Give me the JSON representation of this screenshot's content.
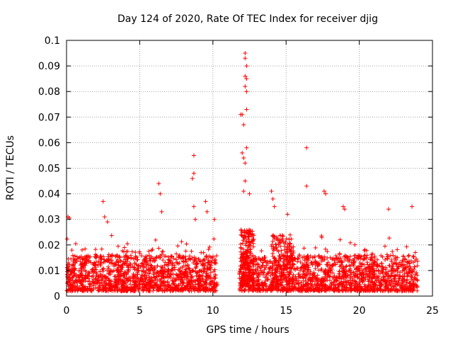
{
  "chart_data": {
    "type": "scatter",
    "title": "Day 124 of 2020, Rate Of TEC Index for receiver djig",
    "xlabel": "GPS time / hours",
    "ylabel": "ROTI / TECUs",
    "xlim": [
      0,
      25
    ],
    "ylim": [
      0,
      0.1
    ],
    "xticks": [
      0,
      5,
      10,
      15,
      20,
      25
    ],
    "xtick_labels": [
      "0",
      "5",
      "10",
      "15",
      "20",
      "25"
    ],
    "yticks": [
      0,
      0.01,
      0.02,
      0.03,
      0.04,
      0.05,
      0.06,
      0.07,
      0.08,
      0.09,
      0.1
    ],
    "ytick_labels": [
      "0",
      "0.01",
      "0.02",
      "0.03",
      "0.04",
      "0.05",
      "0.06",
      "0.07",
      "0.08",
      "0.09",
      "0.1"
    ],
    "grid": true,
    "marker": "+",
    "marker_color": "#ff0000",
    "data_gap_hours": [
      10.3,
      11.8
    ],
    "highlight_points": [
      {
        "x": 0.1,
        "y": 0.031
      },
      {
        "x": 0.2,
        "y": 0.0305
      },
      {
        "x": 2.5,
        "y": 0.037
      },
      {
        "x": 2.6,
        "y": 0.031
      },
      {
        "x": 2.8,
        "y": 0.029
      },
      {
        "x": 6.3,
        "y": 0.044
      },
      {
        "x": 6.4,
        "y": 0.04
      },
      {
        "x": 6.5,
        "y": 0.033
      },
      {
        "x": 8.7,
        "y": 0.055
      },
      {
        "x": 8.7,
        "y": 0.048
      },
      {
        "x": 8.6,
        "y": 0.046
      },
      {
        "x": 8.7,
        "y": 0.035
      },
      {
        "x": 8.8,
        "y": 0.03
      },
      {
        "x": 9.5,
        "y": 0.037
      },
      {
        "x": 9.6,
        "y": 0.033
      },
      {
        "x": 10.1,
        "y": 0.03
      },
      {
        "x": 11.9,
        "y": 0.071
      },
      {
        "x": 12.0,
        "y": 0.071
      },
      {
        "x": 12.1,
        "y": 0.067
      },
      {
        "x": 12.2,
        "y": 0.095
      },
      {
        "x": 12.2,
        "y": 0.093
      },
      {
        "x": 12.3,
        "y": 0.09
      },
      {
        "x": 12.2,
        "y": 0.086
      },
      {
        "x": 12.3,
        "y": 0.085
      },
      {
        "x": 12.2,
        "y": 0.082
      },
      {
        "x": 12.3,
        "y": 0.08
      },
      {
        "x": 12.3,
        "y": 0.073
      },
      {
        "x": 12.3,
        "y": 0.058
      },
      {
        "x": 12.0,
        "y": 0.056
      },
      {
        "x": 12.1,
        "y": 0.054
      },
      {
        "x": 12.2,
        "y": 0.052
      },
      {
        "x": 12.2,
        "y": 0.045
      },
      {
        "x": 12.1,
        "y": 0.041
      },
      {
        "x": 12.5,
        "y": 0.04
      },
      {
        "x": 14.0,
        "y": 0.041
      },
      {
        "x": 14.1,
        "y": 0.038
      },
      {
        "x": 14.2,
        "y": 0.035
      },
      {
        "x": 15.1,
        "y": 0.032
      },
      {
        "x": 16.4,
        "y": 0.058
      },
      {
        "x": 16.4,
        "y": 0.043
      },
      {
        "x": 17.6,
        "y": 0.041
      },
      {
        "x": 17.7,
        "y": 0.04
      },
      {
        "x": 18.9,
        "y": 0.035
      },
      {
        "x": 19.0,
        "y": 0.034
      },
      {
        "x": 22.0,
        "y": 0.034
      },
      {
        "x": 23.6,
        "y": 0.035
      }
    ]
  }
}
